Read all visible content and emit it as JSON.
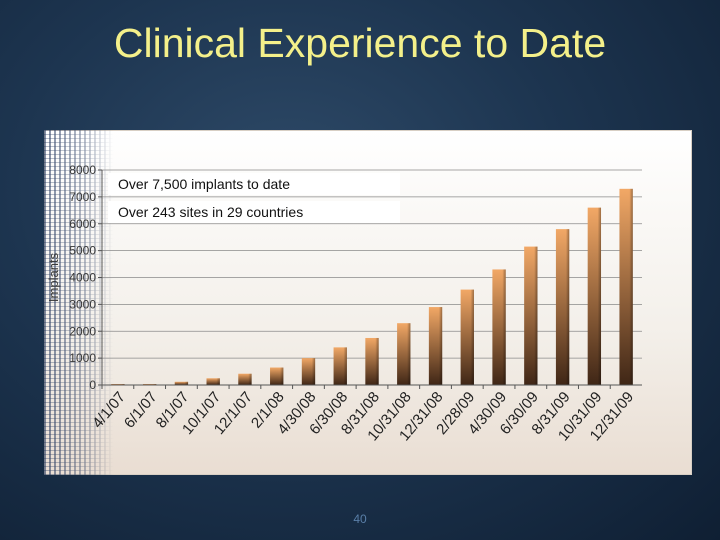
{
  "slide": {
    "title": "Clinical Experience to Date",
    "page_number": "40"
  },
  "colors": {
    "title": "#f4f08a",
    "bar_top": "#f2a866",
    "bar_bottom": "#3f2616",
    "background": "#1d3550"
  },
  "chart_data": {
    "type": "bar",
    "title": "",
    "xlabel": "",
    "ylabel": "Implants",
    "ylim": [
      0,
      8000
    ],
    "yticks": [
      0,
      1000,
      2000,
      3000,
      4000,
      5000,
      6000,
      7000,
      8000
    ],
    "grid": "horizontal",
    "categories": [
      "4/1/07",
      "6/1/07",
      "8/1/07",
      "10/1/07",
      "12/1/07",
      "2/1/08",
      "4/30/08",
      "6/30/08",
      "8/31/08",
      "10/31/08",
      "12/31/08",
      "2/28/09",
      "4/30/09",
      "6/30/09",
      "8/31/09",
      "10/31/09",
      "12/31/09"
    ],
    "values": [
      5,
      30,
      120,
      250,
      420,
      650,
      1000,
      1400,
      1750,
      2300,
      2900,
      3550,
      4300,
      5150,
      5800,
      6600,
      7300
    ],
    "annotations": [
      "Over 7,500 implants to date",
      "Over 243 sites in 29 countries"
    ]
  }
}
